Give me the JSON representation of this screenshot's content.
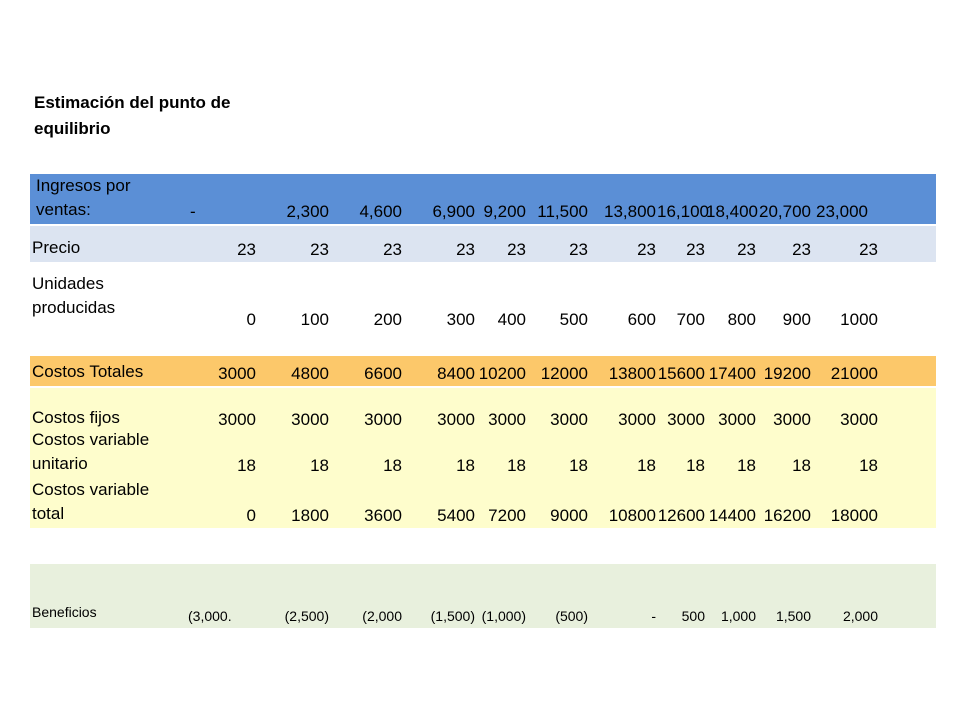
{
  "title": "Estimación del punto de equilibrio",
  "rows": {
    "ingresos": {
      "label_line1": "Ingresos por",
      "label_line2": "ventas:",
      "values": [
        "-",
        "2,300",
        "4,600",
        "6,900",
        "9,200",
        "11,500",
        "13,800",
        "16,100",
        "18,400",
        "20,700",
        "23,000"
      ]
    },
    "precio": {
      "label": "Precio",
      "values": [
        "23",
        "23",
        "23",
        "23",
        "23",
        "23",
        "23",
        "23",
        "23",
        "23",
        "23"
      ]
    },
    "unidades": {
      "label_line1": "Unidades",
      "label_line2": "producidas",
      "values": [
        "0",
        "100",
        "200",
        "300",
        "400",
        "500",
        "600",
        "700",
        "800",
        "900",
        "1000"
      ]
    },
    "costos_totales": {
      "label": "Costos Totales",
      "values": [
        "3000",
        "4800",
        "6600",
        "8400",
        "10200",
        "12000",
        "13800",
        "15600",
        "17400",
        "19200",
        "21000"
      ]
    },
    "costos_fijos": {
      "label": "Costos fijos",
      "values": [
        "3000",
        "3000",
        "3000",
        "3000",
        "3000",
        "3000",
        "3000",
        "3000",
        "3000",
        "3000",
        "3000"
      ]
    },
    "cv_unitario": {
      "label_line1": "Costos variable",
      "label_line2": "unitario",
      "values": [
        "18",
        "18",
        "18",
        "18",
        "18",
        "18",
        "18",
        "18",
        "18",
        "18",
        "18"
      ]
    },
    "cv_total": {
      "label_line1": "Costos variable",
      "label_line2": "total",
      "values": [
        "0",
        "1800",
        "3600",
        "5400",
        "7200",
        "9000",
        "10800",
        "12600",
        "14400",
        "16200",
        "18000"
      ]
    },
    "beneficios": {
      "label": "Beneficios",
      "values": [
        "(3,000.",
        "(2,500)",
        "(2,000",
        "(1,500)",
        "(1,000)",
        "(500)",
        "-",
        "500",
        "1,000",
        "1,500",
        "2,000"
      ]
    }
  },
  "colors": {
    "ingresos_bg": "#5b8fd6",
    "precio_bg": "#dce4f1",
    "costos_totales_bg": "#fcc86a",
    "costos_detail_bg": "#fefdcc",
    "beneficios_bg": "#e8f0dd"
  }
}
